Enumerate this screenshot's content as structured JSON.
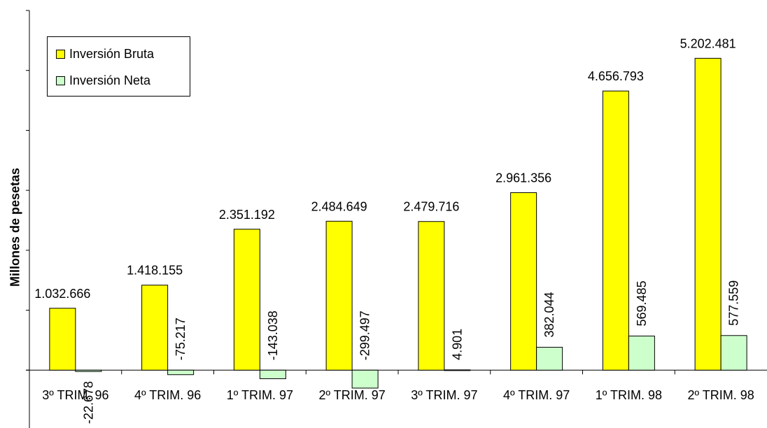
{
  "chart_data": {
    "type": "bar",
    "title": "",
    "xlabel": "",
    "ylabel": "Millones de pesetas",
    "ylim": [
      -1000000,
      6000000
    ],
    "y_tick_step": 1000000,
    "grid": false,
    "legend_position": "top-left",
    "categories": [
      "3º TRIM. 96",
      "4º TRIM. 96",
      "1º TRIM. 97",
      "2º TRIM. 97",
      "3º TRIM. 97",
      "4º TRIM. 97",
      "1º TRIM. 98",
      "2º TRIM. 98"
    ],
    "series": [
      {
        "name": "Inversión Bruta",
        "color": "#ffff00",
        "values": [
          1032666,
          1418155,
          2351192,
          2484649,
          2479716,
          2961356,
          4656793,
          5202481
        ],
        "labels": [
          "1.032.666",
          "1.418.155",
          "2.351.192",
          "2.484.649",
          "2.479.716",
          "2.961.356",
          "4.656.793",
          "5.202.481"
        ]
      },
      {
        "name": "Inversión Neta",
        "color": "#ccffcc",
        "values": [
          -22678,
          -75217,
          -143038,
          -299497,
          4901,
          382044,
          569485,
          577559
        ],
        "labels": [
          "-22.678",
          "-75.217",
          "-143.038",
          "-299.497",
          "4.901",
          "382.044",
          "569.485",
          "577.559"
        ]
      }
    ]
  }
}
